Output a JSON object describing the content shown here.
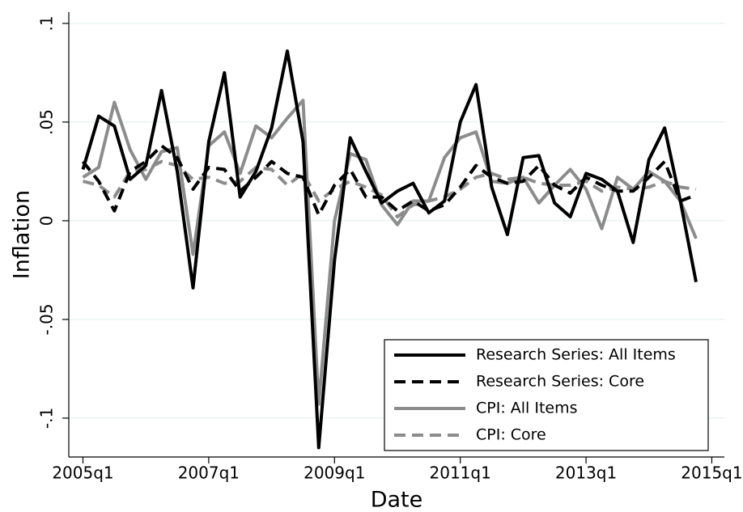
{
  "chart_data": {
    "type": "line",
    "xlabel": "Date",
    "ylabel": "Inflation",
    "x": [
      180,
      181,
      182,
      183,
      184,
      185,
      186,
      187,
      188,
      189,
      190,
      191,
      192,
      193,
      194,
      195,
      196,
      197,
      198,
      199,
      200,
      201,
      202,
      203,
      204,
      205,
      206,
      207,
      208,
      209,
      210,
      211,
      212,
      213,
      214,
      215,
      216,
      217,
      218,
      219
    ],
    "xlim": [
      179.1,
      220.8
    ],
    "xticks": [
      {
        "value": 180,
        "label": "2005q1"
      },
      {
        "value": 188,
        "label": "2007q1"
      },
      {
        "value": 196,
        "label": "2009q1"
      },
      {
        "value": 204,
        "label": "2011q1"
      },
      {
        "value": 212,
        "label": "2013q1"
      },
      {
        "value": 220,
        "label": "2015q1"
      }
    ],
    "ylim": [
      -0.1197,
      0.1057
    ],
    "yticks": [
      {
        "value": -0.1,
        "label": "-.1"
      },
      {
        "value": -0.05,
        "label": "-.05"
      },
      0,
      {
        "value": 0.05,
        "label": ".05"
      },
      {
        "value": 0.1,
        "label": ".1"
      }
    ],
    "grid": true,
    "legend": "lower right",
    "series": [
      {
        "name": "Research Series: All Items",
        "color": "#000000",
        "style": "solid",
        "values": [
          0.026,
          0.053,
          0.048,
          0.021,
          0.028,
          0.066,
          0.025,
          -0.034,
          0.04,
          0.075,
          0.012,
          0.025,
          0.047,
          0.086,
          0.04,
          -0.115,
          -0.02,
          0.042,
          0.025,
          0.009,
          0.015,
          0.019,
          0.004,
          0.01,
          0.05,
          0.069,
          0.017,
          -0.007,
          0.032,
          0.033,
          0.009,
          0.002,
          0.024,
          0.021,
          0.015,
          -0.011,
          0.031,
          0.047,
          0.01,
          -0.031
        ]
      },
      {
        "name": "Research Series: Core",
        "color": "#000000",
        "style": "dash",
        "values": [
          0.03,
          0.02,
          0.005,
          0.025,
          0.03,
          0.038,
          0.032,
          0.016,
          0.027,
          0.026,
          0.015,
          0.022,
          0.03,
          0.024,
          0.022,
          0.003,
          0.018,
          0.026,
          0.012,
          0.012,
          0.005,
          0.01,
          0.005,
          0.008,
          0.017,
          0.028,
          0.022,
          0.019,
          0.02,
          0.028,
          0.018,
          0.014,
          0.022,
          0.018,
          0.015,
          0.015,
          0.022,
          0.03,
          0.01,
          0.013
        ]
      },
      {
        "name": "CPI: All Items",
        "color": "#8c8c8c",
        "style": "solid",
        "values": [
          0.022,
          0.027,
          0.06,
          0.036,
          0.021,
          0.035,
          0.037,
          -0.017,
          0.038,
          0.045,
          0.024,
          0.048,
          0.042,
          0.052,
          0.061,
          -0.093,
          0.0,
          0.034,
          0.031,
          0.008,
          -0.002,
          0.01,
          0.01,
          0.032,
          0.042,
          0.045,
          0.02,
          0.019,
          0.022,
          0.009,
          0.018,
          0.026,
          0.016,
          -0.004,
          0.022,
          0.016,
          0.025,
          0.02,
          0.01,
          -0.009
        ]
      },
      {
        "name": "CPI: Core",
        "color": "#8c8c8c",
        "style": "dash",
        "values": [
          0.02,
          0.018,
          0.012,
          0.025,
          0.026,
          0.03,
          0.028,
          0.021,
          0.022,
          0.019,
          0.02,
          0.027,
          0.026,
          0.018,
          0.024,
          0.01,
          0.016,
          0.02,
          0.017,
          0.013,
          0.002,
          0.008,
          0.01,
          0.012,
          0.016,
          0.022,
          0.024,
          0.021,
          0.022,
          0.019,
          0.018,
          0.018,
          0.02,
          0.015,
          0.017,
          0.016,
          0.017,
          0.02,
          0.017,
          0.016
        ]
      }
    ]
  }
}
